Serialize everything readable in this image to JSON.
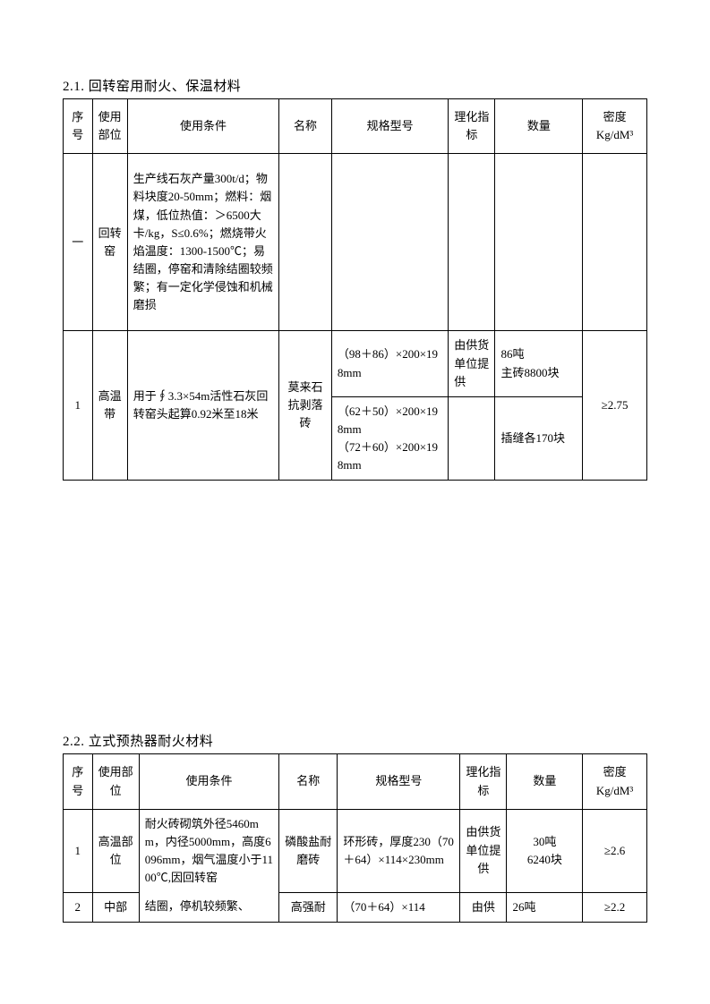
{
  "section1": {
    "heading": "2.1. 回转窑用耐火、保温材料",
    "head": [
      "序号",
      "使用部位",
      "使用条件",
      "名称",
      "规格型号",
      "理化指标",
      "数量",
      "密度\nKg/dM³"
    ],
    "row_a": {
      "seq": "一",
      "part": "回转窑",
      "cond": "生产线石灰产量300t/d；物料块度20-50mm；燃料：烟煤，低位热值：＞6500大卡/kg，S≤0.6%；燃烧带火焰温度：1300-1500℃；易结圈，停窑和清除结圈较频繁；有一定化学侵蚀和机械磨损",
      "name": "",
      "spec": "",
      "chem": "",
      "qty": "",
      "dens": ""
    },
    "row_b": {
      "seq": "1",
      "part": "高温带",
      "cond": "用于∮3.3×54m活性石灰回转窑头起算0.92米至18米",
      "name": "莫来石抗剥落砖",
      "spec1": "（98＋86）×200×198mm",
      "chem1": "由供货单位提供",
      "qty1": "86吨\n主砖8800块",
      "spec2": "（62＋50）×200×198mm\n（72＋60）×200×198mm",
      "qty2": "插缝各170块",
      "dens": "≥2.75"
    }
  },
  "section2": {
    "heading": "2.2. 立式预热器耐火材料",
    "head": [
      "序号",
      "使用部位",
      "使用条件",
      "名称",
      "规格型号",
      "理化指标",
      "数量",
      "密度\nKg/dM³"
    ],
    "row1": {
      "seq": "1",
      "part": "高温部位",
      "cond_a": "耐火砖砌筑外径5460mm，内径5000mm，高度6096mm，烟气温度小于1100℃,因回转窑",
      "name": "磷酸盐耐磨砖",
      "spec": "环形砖，厚度230（70＋64）×114×230mm",
      "chem": "由供货单位提供",
      "qty": "30吨\n6240块",
      "dens": "≥2.6"
    },
    "row2": {
      "seq": "2",
      "part": "中部",
      "cond_b": "结圈，停机较频繁、",
      "name": "高强耐",
      "spec": "（70＋64）×114",
      "chem": "由供",
      "qty": "26吨",
      "dens": "≥2.2"
    }
  }
}
